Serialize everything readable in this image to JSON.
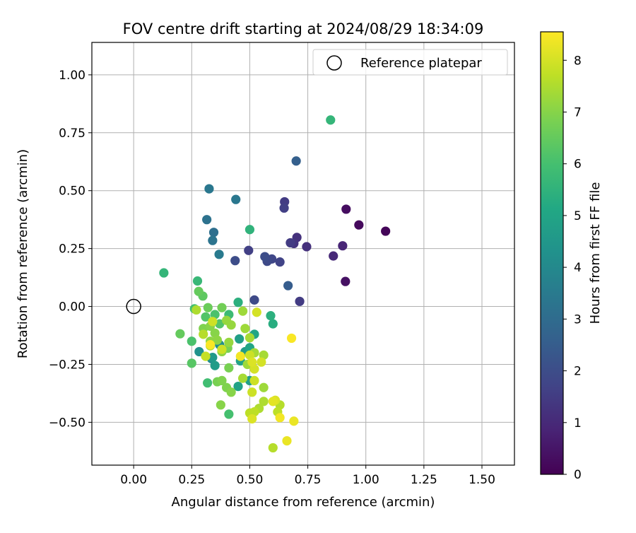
{
  "chart_data": {
    "type": "scatter",
    "title": "FOV centre drift starting at 2024/08/29 18:34:09",
    "xlabel": "Angular distance from reference (arcmin)",
    "ylabel": "Rotation from reference (arcmin)",
    "xlim": [
      -0.18,
      1.64
    ],
    "ylim": [
      -0.685,
      1.14
    ],
    "x_ticks": [
      "0.00",
      "0.25",
      "0.50",
      "0.75",
      "1.00",
      "1.25",
      "1.50"
    ],
    "x_tick_values": [
      0,
      0.25,
      0.5,
      0.75,
      1.0,
      1.25,
      1.5
    ],
    "y_ticks": [
      "−0.50",
      "−0.25",
      "0.00",
      "0.25",
      "0.50",
      "0.75",
      "1.00"
    ],
    "y_tick_values": [
      -0.5,
      -0.25,
      0,
      0.25,
      0.5,
      0.75,
      1.0
    ],
    "grid": true,
    "legend_position": "top-right",
    "legend": [
      "Reference platepar"
    ],
    "reference_point": {
      "x": 0.0,
      "y": 0.0
    },
    "colorbar": {
      "label": "Hours from first FF file",
      "range": [
        0,
        8.55
      ],
      "ticks": [
        "0",
        "1",
        "2",
        "3",
        "4",
        "5",
        "6",
        "7",
        "8"
      ],
      "tick_values": [
        0,
        1,
        2,
        3,
        4,
        5,
        6,
        7,
        8
      ],
      "colormap": "viridis"
    },
    "points": [
      {
        "x": 1.085,
        "y": 0.325,
        "c": 0.1
      },
      {
        "x": 0.97,
        "y": 0.352,
        "c": 0.2
      },
      {
        "x": 0.915,
        "y": 0.42,
        "c": 0.3
      },
      {
        "x": 0.912,
        "y": 0.108,
        "c": 0.4
      },
      {
        "x": 0.9,
        "y": 0.262,
        "c": 0.9
      },
      {
        "x": 0.86,
        "y": 0.218,
        "c": 1.0
      },
      {
        "x": 0.745,
        "y": 0.258,
        "c": 1.2
      },
      {
        "x": 0.703,
        "y": 0.298,
        "c": 1.2
      },
      {
        "x": 0.69,
        "y": 0.272,
        "c": 1.3
      },
      {
        "x": 0.675,
        "y": 0.275,
        "c": 1.5
      },
      {
        "x": 0.715,
        "y": 0.022,
        "c": 1.5
      },
      {
        "x": 0.65,
        "y": 0.452,
        "c": 1.5
      },
      {
        "x": 0.648,
        "y": 0.425,
        "c": 1.6
      },
      {
        "x": 0.63,
        "y": 0.192,
        "c": 1.7
      },
      {
        "x": 0.595,
        "y": 0.205,
        "c": 1.8
      },
      {
        "x": 0.575,
        "y": 0.195,
        "c": 1.9
      },
      {
        "x": 0.565,
        "y": 0.215,
        "c": 2.0
      },
      {
        "x": 0.495,
        "y": 0.242,
        "c": 1.6
      },
      {
        "x": 0.52,
        "y": 0.028,
        "c": 1.9
      },
      {
        "x": 0.437,
        "y": 0.198,
        "c": 2.0
      },
      {
        "x": 0.665,
        "y": 0.09,
        "c": 2.5
      },
      {
        "x": 0.7,
        "y": 0.628,
        "c": 2.6
      },
      {
        "x": 0.345,
        "y": 0.32,
        "c": 3.1
      },
      {
        "x": 0.34,
        "y": 0.285,
        "c": 3.3
      },
      {
        "x": 0.325,
        "y": 0.508,
        "c": 3.4
      },
      {
        "x": 0.315,
        "y": 0.375,
        "c": 3.2
      },
      {
        "x": 0.44,
        "y": 0.462,
        "c": 3.4
      },
      {
        "x": 0.368,
        "y": 0.225,
        "c": 3.5
      },
      {
        "x": 0.335,
        "y": -0.225,
        "c": 4.0
      },
      {
        "x": 0.37,
        "y": -0.165,
        "c": 4.2
      },
      {
        "x": 0.282,
        "y": -0.195,
        "c": 4.3
      },
      {
        "x": 0.34,
        "y": -0.22,
        "c": 4.6
      },
      {
        "x": 0.48,
        "y": -0.195,
        "c": 4.7
      },
      {
        "x": 0.46,
        "y": -0.235,
        "c": 4.9
      },
      {
        "x": 0.455,
        "y": -0.14,
        "c": 4.8
      },
      {
        "x": 0.5,
        "y": -0.178,
        "c": 5.0
      },
      {
        "x": 0.52,
        "y": -0.12,
        "c": 5.0
      },
      {
        "x": 0.45,
        "y": -0.345,
        "c": 4.9
      },
      {
        "x": 0.5,
        "y": -0.32,
        "c": 4.8
      },
      {
        "x": 0.35,
        "y": -0.255,
        "c": 4.7
      },
      {
        "x": 0.6,
        "y": -0.075,
        "c": 5.3
      },
      {
        "x": 0.59,
        "y": -0.04,
        "c": 5.4
      },
      {
        "x": 0.5,
        "y": 0.332,
        "c": 5.5
      },
      {
        "x": 0.848,
        "y": 0.805,
        "c": 5.6
      },
      {
        "x": 0.13,
        "y": 0.145,
        "c": 5.6
      },
      {
        "x": 0.45,
        "y": 0.018,
        "c": 5.4
      },
      {
        "x": 0.275,
        "y": 0.11,
        "c": 5.7
      },
      {
        "x": 0.41,
        "y": -0.035,
        "c": 5.8
      },
      {
        "x": 0.318,
        "y": -0.33,
        "c": 5.9
      },
      {
        "x": 0.41,
        "y": -0.465,
        "c": 6.0
      },
      {
        "x": 0.262,
        "y": -0.01,
        "c": 6.0
      },
      {
        "x": 0.25,
        "y": -0.15,
        "c": 6.1
      },
      {
        "x": 0.35,
        "y": -0.035,
        "c": 6.1
      },
      {
        "x": 0.31,
        "y": -0.045,
        "c": 6.2
      },
      {
        "x": 0.37,
        "y": -0.075,
        "c": 6.2
      },
      {
        "x": 0.298,
        "y": 0.045,
        "c": 6.4
      },
      {
        "x": 0.28,
        "y": 0.065,
        "c": 6.5
      },
      {
        "x": 0.25,
        "y": -0.245,
        "c": 6.3
      },
      {
        "x": 0.2,
        "y": -0.118,
        "c": 6.5
      },
      {
        "x": 0.32,
        "y": -0.005,
        "c": 6.6
      },
      {
        "x": 0.38,
        "y": -0.005,
        "c": 6.7
      },
      {
        "x": 0.405,
        "y": -0.18,
        "c": 6.8
      },
      {
        "x": 0.41,
        "y": -0.265,
        "c": 6.8
      },
      {
        "x": 0.36,
        "y": -0.325,
        "c": 6.8
      },
      {
        "x": 0.38,
        "y": -0.32,
        "c": 6.9
      },
      {
        "x": 0.4,
        "y": -0.35,
        "c": 6.9
      },
      {
        "x": 0.375,
        "y": -0.425,
        "c": 7.0
      },
      {
        "x": 0.42,
        "y": -0.37,
        "c": 7.0
      },
      {
        "x": 0.3,
        "y": -0.095,
        "c": 6.9
      },
      {
        "x": 0.33,
        "y": -0.085,
        "c": 7.0
      },
      {
        "x": 0.35,
        "y": -0.115,
        "c": 7.0
      },
      {
        "x": 0.33,
        "y": -0.15,
        "c": 7.1
      },
      {
        "x": 0.36,
        "y": -0.145,
        "c": 7.1
      },
      {
        "x": 0.38,
        "y": -0.195,
        "c": 7.1
      },
      {
        "x": 0.4,
        "y": -0.06,
        "c": 7.2
      },
      {
        "x": 0.42,
        "y": -0.08,
        "c": 7.2
      },
      {
        "x": 0.41,
        "y": -0.155,
        "c": 7.2
      },
      {
        "x": 0.47,
        "y": -0.02,
        "c": 7.3
      },
      {
        "x": 0.48,
        "y": -0.095,
        "c": 7.3
      },
      {
        "x": 0.49,
        "y": -0.25,
        "c": 7.3
      },
      {
        "x": 0.47,
        "y": -0.31,
        "c": 7.4
      },
      {
        "x": 0.5,
        "y": -0.135,
        "c": 7.4
      },
      {
        "x": 0.52,
        "y": -0.2,
        "c": 7.4
      },
      {
        "x": 0.56,
        "y": -0.21,
        "c": 7.4
      },
      {
        "x": 0.56,
        "y": -0.35,
        "c": 7.3
      },
      {
        "x": 0.54,
        "y": -0.44,
        "c": 7.5
      },
      {
        "x": 0.56,
        "y": -0.41,
        "c": 7.5
      },
      {
        "x": 0.6,
        "y": -0.61,
        "c": 7.6
      },
      {
        "x": 0.63,
        "y": -0.425,
        "c": 7.6
      },
      {
        "x": 0.62,
        "y": -0.455,
        "c": 7.7
      },
      {
        "x": 0.52,
        "y": -0.455,
        "c": 7.7
      },
      {
        "x": 0.5,
        "y": -0.46,
        "c": 7.7
      },
      {
        "x": 0.33,
        "y": -0.17,
        "c": 7.6
      },
      {
        "x": 0.3,
        "y": -0.12,
        "c": 7.6
      },
      {
        "x": 0.27,
        "y": -0.015,
        "c": 7.5
      },
      {
        "x": 0.31,
        "y": -0.215,
        "c": 7.8
      },
      {
        "x": 0.34,
        "y": -0.065,
        "c": 7.9
      },
      {
        "x": 0.38,
        "y": -0.185,
        "c": 7.9
      },
      {
        "x": 0.5,
        "y": -0.21,
        "c": 7.9
      },
      {
        "x": 0.51,
        "y": -0.37,
        "c": 7.9
      },
      {
        "x": 0.52,
        "y": -0.32,
        "c": 7.9
      },
      {
        "x": 0.53,
        "y": -0.025,
        "c": 8.0
      },
      {
        "x": 0.52,
        "y": -0.27,
        "c": 8.0
      },
      {
        "x": 0.51,
        "y": -0.24,
        "c": 8.1
      },
      {
        "x": 0.55,
        "y": -0.24,
        "c": 8.0
      },
      {
        "x": 0.51,
        "y": -0.485,
        "c": 8.1
      },
      {
        "x": 0.61,
        "y": -0.405,
        "c": 8.1
      },
      {
        "x": 0.6,
        "y": -0.41,
        "c": 8.2
      },
      {
        "x": 0.69,
        "y": -0.495,
        "c": 8.3
      },
      {
        "x": 0.66,
        "y": -0.58,
        "c": 8.3
      },
      {
        "x": 0.63,
        "y": -0.48,
        "c": 8.4
      },
      {
        "x": 0.46,
        "y": -0.215,
        "c": 8.4
      },
      {
        "x": 0.68,
        "y": -0.137,
        "c": 8.5
      },
      {
        "x": 0.33,
        "y": -0.165,
        "c": 8.5
      }
    ]
  }
}
